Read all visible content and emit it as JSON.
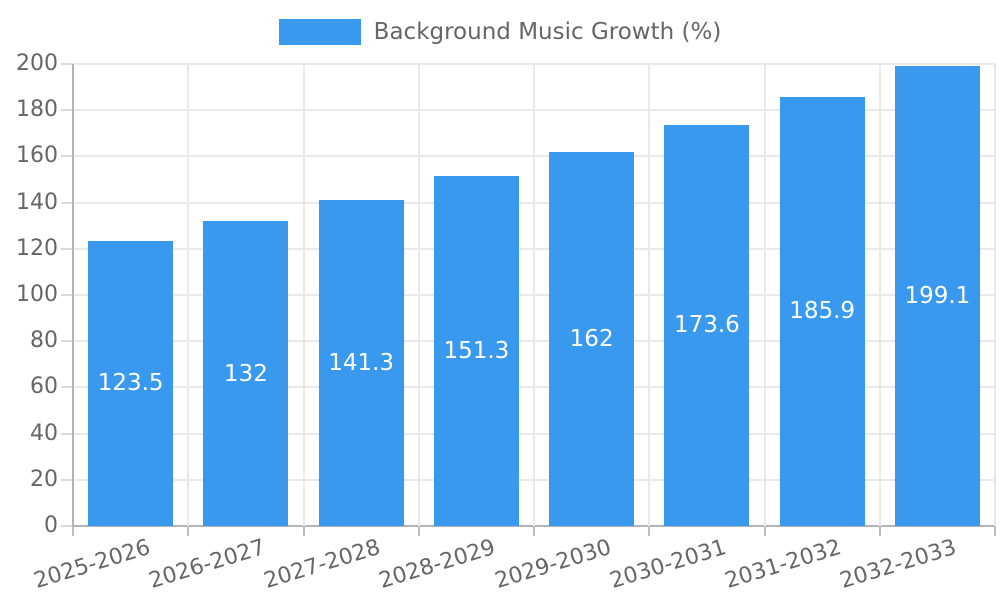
{
  "chart_data": {
    "type": "bar",
    "title": "Background Music Growth (%)",
    "legend": [
      "Background Music Growth (%)"
    ],
    "legend_position": "top-center",
    "categories": [
      "2025-2026",
      "2026-2027",
      "2027-2028",
      "2028-2029",
      "2029-2030",
      "2030-2031",
      "2031-2032",
      "2032-2033"
    ],
    "values": [
      123.5,
      132,
      141.3,
      151.3,
      162,
      173.6,
      185.9,
      199.1
    ],
    "value_labels": [
      "123.5",
      "132",
      "141.3",
      "151.3",
      "162",
      "173.6",
      "185.9",
      "199.1"
    ],
    "xlabel": "",
    "ylabel": "",
    "ylim": [
      0,
      200
    ],
    "yticks": [
      0,
      20,
      40,
      60,
      80,
      100,
      120,
      140,
      160,
      180,
      200
    ],
    "grid": true,
    "x_label_rotation_deg": -17
  },
  "colors": {
    "background": "#FFFFFF",
    "bar": "#3899EE",
    "grid_line": "#E9E9E9",
    "axis_line": "#B3B3B3",
    "tick_mark": "#D9D9D9",
    "axis_tick": "#BFBFBF",
    "tick_text": "#666666",
    "legend_text": "#666666",
    "bar_label_text": "#FFFFFF"
  }
}
